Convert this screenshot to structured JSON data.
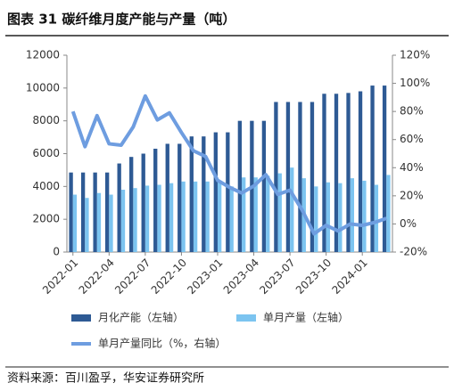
{
  "chart_data": {
    "type": "bar-line",
    "title": "图表 31 碳纤维月度产能与产量（吨）",
    "source": "资料来源：百川盈孚，华安证券研究所",
    "categories": [
      "2022-01",
      null,
      null,
      "2022-04",
      null,
      null,
      "2022-07",
      null,
      null,
      "2022-10",
      null,
      null,
      "2023-01",
      null,
      null,
      "2023-04",
      null,
      null,
      "2023-07",
      null,
      null,
      "2023-10",
      null,
      null,
      "2024-01",
      null,
      null
    ],
    "series": [
      {
        "name": "月化产能（左轴）",
        "color": "#2e5a94",
        "type": "bar",
        "axis": "y",
        "values": [
          4850,
          4850,
          4850,
          4850,
          5400,
          5800,
          6000,
          6300,
          6600,
          6600,
          7050,
          7050,
          7300,
          7300,
          8000,
          8000,
          8000,
          9150,
          9150,
          9150,
          9150,
          9650,
          9650,
          9700,
          9800,
          10150,
          10150
        ]
      },
      {
        "name": "单月产量（左轴）",
        "color": "#7cc4f0",
        "type": "bar",
        "axis": "y",
        "values": [
          3500,
          3300,
          3600,
          3500,
          3800,
          3900,
          4050,
          4100,
          4200,
          4300,
          4300,
          4300,
          4300,
          4000,
          4550,
          4550,
          4650,
          4800,
          5150,
          4500,
          4000,
          4250,
          4200,
          4500,
          4350,
          4100,
          4700
        ]
      },
      {
        "name": "单月产量同比（%，右轴）",
        "color": "#6e9de0",
        "type": "line",
        "axis": "y2",
        "values": [
          80,
          55,
          77,
          57,
          56,
          69,
          91,
          74,
          79,
          65,
          52,
          48,
          31,
          26,
          22,
          27,
          35,
          21,
          24,
          10,
          -7,
          -1,
          -5,
          0,
          -1,
          1,
          4
        ]
      }
    ],
    "ylim": [
      0,
      12000
    ],
    "yticks": [
      0,
      2000,
      4000,
      6000,
      8000,
      10000,
      12000
    ],
    "y2lim": [
      -20,
      120
    ],
    "y2ticks": [
      {
        "value": -20,
        "label": "-20%"
      },
      {
        "value": 0,
        "label": "0%"
      },
      {
        "value": 20,
        "label": "20%"
      },
      {
        "value": 40,
        "label": "40%"
      },
      {
        "value": 60,
        "label": "60%"
      },
      {
        "value": 80,
        "label": "80%"
      },
      {
        "value": 100,
        "label": "100%"
      },
      {
        "value": 120,
        "label": "120%"
      }
    ]
  }
}
